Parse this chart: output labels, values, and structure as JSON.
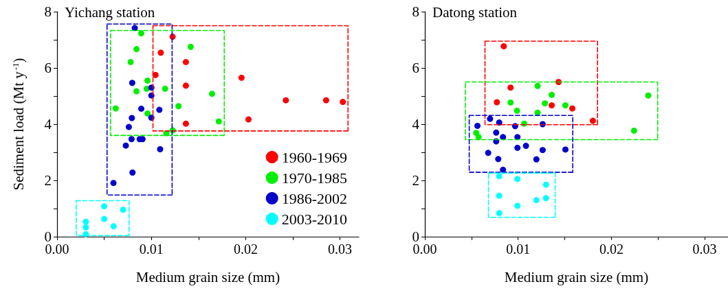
{
  "chart_data": [
    {
      "type": "scatter",
      "title": "Yichang station",
      "xlabel": "Medium grain size (mm)",
      "ylabel": "Sediment load (Mt y$^{-1}$)",
      "xlim": [
        0,
        0.032
      ],
      "ylim": [
        0,
        8
      ],
      "xticks": [
        {
          "value": 0,
          "label": "0.00"
        },
        {
          "value": 0.005,
          "label": null
        },
        {
          "value": 0.01,
          "label": "0.01"
        },
        {
          "value": 0.015,
          "label": null
        },
        {
          "value": 0.02,
          "label": "0.02"
        },
        {
          "value": 0.025,
          "label": null
        },
        {
          "value": 0.03,
          "label": "0.03"
        }
      ],
      "yticks": [
        0,
        {
          "value": 1,
          "label": null
        },
        2,
        {
          "value": 3,
          "label": null
        },
        4,
        {
          "value": 5,
          "label": null
        },
        6,
        {
          "value": 7,
          "label": null
        },
        8
      ],
      "grid": false,
      "legend": "bottom right",
      "marker": "circle",
      "series": [
        {
          "name": "1960-1969",
          "color": "#ff0000",
          "x": [
            0.01225,
            0.011,
            0.01366,
            0.01044,
            0.01366,
            0.01366,
            0.01956,
            0.0203,
            0.02426,
            0.02853,
            0.0303
          ],
          "values": [
            7.11,
            6.54,
            6.21,
            5.75,
            5.37,
            4.02,
            5.65,
            4.17,
            4.85,
            4.85,
            4.79
          ]
        },
        {
          "name": "1970-1985",
          "color": "#00ee00",
          "x": [
            0.00893,
            0.00842,
            0.0078,
            0.01417,
            0.00959,
            0.00842,
            0.00951,
            0.01146,
            0.01644,
            0.00622,
            0.01288,
            0.00959,
            0.01715,
            0.01159,
            0.01227
          ],
          "values": [
            7.23,
            6.67,
            6.21,
            6.75,
            5.55,
            5.17,
            5.26,
            5.26,
            5.08,
            4.56,
            4.64,
            4.38,
            4.1,
            3.68,
            3.78
          ]
        },
        {
          "name": "1986-2002",
          "color": "#0000cc",
          "x": [
            0.00824,
            0.00797,
            0.01,
            0.01,
            0.00893,
            0.01085,
            0.00793,
            0.01,
            0.00761,
            0.0079,
            0.00876,
            0.00906,
            0.00729,
            0.01093,
            0.008,
            0.00598
          ],
          "values": [
            7.42,
            5.47,
            5.3,
            5.02,
            4.55,
            4.51,
            4.22,
            4.23,
            3.9,
            3.47,
            3.47,
            3.47,
            3.24,
            3.11,
            2.28,
            1.91
          ]
        },
        {
          "name": "2003-2010",
          "color": "#00ffff",
          "x": [
            0.00305,
            0.00305,
            0.00305,
            0.005,
            0.005,
            0.006,
            0.007
          ],
          "values": [
            0.53,
            0.33,
            0.09,
            1.08,
            0.63,
            0.37,
            0.96
          ]
        },
        {
          "type": "line",
          "line_style": "dashed",
          "marker": "none",
          "color": "#ff0000",
          "x": [
            0.01017,
            0.03085,
            0.03085
          ],
          "values": [
            7.5,
            7.5,
            3.76
          ]
        },
        {
          "type": "line",
          "line_style": "dashed",
          "marker": "none",
          "color": "#ff0000",
          "x": [
            0.03085,
            0.01017,
            0.01017
          ],
          "values": [
            3.76,
            3.76,
            7.5
          ]
        },
        {
          "type": "line",
          "line_style": "dashed",
          "marker": "none",
          "color": "#00ee00",
          "x": [
            0.00568,
            0.01773,
            0.01773
          ],
          "values": [
            7.33,
            7.33,
            3.6
          ]
        },
        {
          "type": "line",
          "line_style": "dashed",
          "marker": "none",
          "color": "#00ee00",
          "x": [
            0.01773,
            0.00568,
            0.00568
          ],
          "values": [
            3.6,
            3.6,
            7.33
          ]
        },
        {
          "type": "line",
          "line_style": "dashed",
          "marker": "none",
          "color": "#0000cc",
          "x": [
            0.0053,
            0.0122,
            0.0122
          ],
          "values": [
            7.56,
            7.56,
            1.48
          ]
        },
        {
          "type": "line",
          "line_style": "dashed",
          "marker": "none",
          "color": "#0000cc",
          "x": [
            0.0122,
            0.0053,
            0.0053
          ],
          "values": [
            1.48,
            1.48,
            7.56
          ]
        },
        {
          "type": "line",
          "line_style": "dashed",
          "marker": "none",
          "color": "#00ffff",
          "x": [
            0.00203,
            0.00764,
            0.00764
          ],
          "values": [
            1.28,
            1.28,
            0.04
          ]
        },
        {
          "type": "line",
          "line_style": "dashed",
          "marker": "none",
          "color": "#00ffff",
          "x": [
            0.00764,
            0.00203,
            0.00203
          ],
          "values": [
            0.04,
            0.04,
            1.28
          ]
        }
      ]
    },
    {
      "type": "scatter",
      "title": "Datong station",
      "xlabel": "Medium grain size (mm)",
      "xlim": [
        0,
        0.0325
      ],
      "ylim": [
        0,
        8
      ],
      "xticks": [
        {
          "value": 0,
          "label": "0.00"
        },
        {
          "value": 0.005,
          "label": null
        },
        {
          "value": 0.01,
          "label": "0.01"
        },
        {
          "value": 0.015,
          "label": null
        },
        {
          "value": 0.02,
          "label": "0.02"
        },
        {
          "value": 0.025,
          "label": null
        },
        {
          "value": 0.03,
          "label": "0.03"
        }
      ],
      "yticks": [
        0,
        {
          "value": 1,
          "label": null
        },
        2,
        {
          "value": 3,
          "label": null
        },
        4,
        {
          "value": 5,
          "label": null
        },
        6,
        {
          "value": 7,
          "label": null
        },
        8
      ],
      "grid": false,
      "marker": "circle",
      "series": [
        {
          "color": "#ff0000",
          "x": [
            0.00846,
            0.00919,
            0.00772,
            0.01434,
            0.0136,
            0.01581,
            0.01801
          ],
          "values": [
            6.77,
            5.3,
            4.78,
            5.5,
            4.67,
            4.56,
            4.12
          ]
        },
        {
          "color": "#00ee00",
          "x": [
            0.01209,
            0.00919,
            0.0136,
            0.01287,
            0.00988,
            0.01209,
            0.01507,
            0.01066,
            0.00551,
            0.00576,
            0.02395,
            0.02243
          ],
          "values": [
            5.36,
            4.77,
            5.04,
            4.74,
            4.48,
            4.41,
            4.67,
            4.02,
            3.69,
            3.54,
            5.02,
            3.77
          ]
        },
        {
          "color": "#0000cc",
          "x": [
            0.00564,
            0.00699,
            0.00797,
            0.00968,
            0.01263,
            0.00765,
            0.00838,
            0.00993,
            0.00765,
            0.00679,
            0.00993,
            0.01084,
            0.01263,
            0.01507,
            0.00787,
            0.01196,
            0.00838
          ],
          "values": [
            3.94,
            4.19,
            4.06,
            3.93,
            4.0,
            3.7,
            3.54,
            3.54,
            3.39,
            2.98,
            3.16,
            3.23,
            3.08,
            3.1,
            2.76,
            2.75,
            2.38
          ]
        },
        {
          "color": "#00ffff",
          "x": [
            0.00797,
            0.00993,
            0.01299,
            0.00797,
            0.01299,
            0.01196,
            0.00993,
            0.00797
          ],
          "values": [
            2.15,
            2.05,
            1.85,
            1.46,
            1.37,
            1.3,
            1.1,
            0.84
          ]
        },
        {
          "type": "line",
          "line_style": "dashed",
          "marker": "none",
          "color": "#ff0000",
          "x": [
            0.00645,
            0.01851,
            0.01851
          ],
          "values": [
            6.95,
            6.95,
            3.98
          ]
        },
        {
          "type": "line",
          "line_style": "dashed",
          "marker": "none",
          "color": "#ff0000",
          "x": [
            0.01851,
            0.00645,
            0.00645
          ],
          "values": [
            3.98,
            3.98,
            6.95
          ]
        },
        {
          "type": "line",
          "line_style": "dashed",
          "marker": "none",
          "color": "#00ee00",
          "x": [
            0.00434,
            0.02496,
            0.02496
          ],
          "values": [
            5.5,
            5.5,
            3.45
          ]
        },
        {
          "type": "line",
          "line_style": "dashed",
          "marker": "none",
          "color": "#00ee00",
          "x": [
            0.02496,
            0.00434,
            0.00434
          ],
          "values": [
            3.45,
            3.45,
            5.5
          ]
        },
        {
          "type": "line",
          "line_style": "dashed",
          "marker": "none",
          "color": "#0000cc",
          "x": [
            0.00476,
            0.01586,
            0.01586
          ],
          "values": [
            4.31,
            4.31,
            2.29
          ]
        },
        {
          "type": "line",
          "line_style": "dashed",
          "marker": "none",
          "color": "#0000cc",
          "x": [
            0.01586,
            0.00476,
            0.00476
          ],
          "values": [
            2.29,
            2.29,
            4.31
          ]
        },
        {
          "type": "line",
          "line_style": "dashed",
          "marker": "none",
          "color": "#00ffff",
          "x": [
            0.00682,
            0.01397,
            0.01397
          ],
          "values": [
            2.26,
            2.26,
            0.69
          ]
        },
        {
          "type": "line",
          "line_style": "dashed",
          "marker": "none",
          "color": "#00ffff",
          "x": [
            0.01397,
            0.00682,
            0.00682
          ],
          "values": [
            0.69,
            0.69,
            2.26
          ]
        }
      ]
    }
  ]
}
